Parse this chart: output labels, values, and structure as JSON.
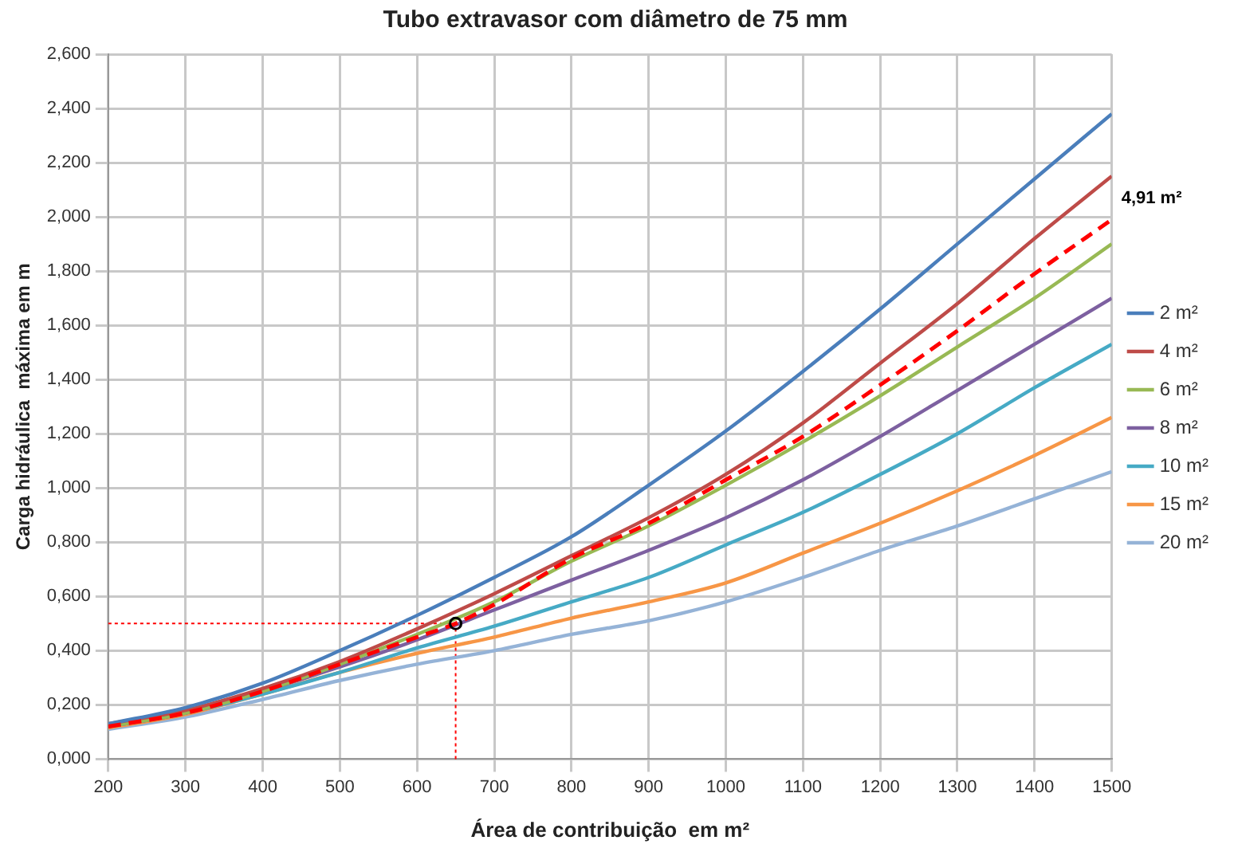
{
  "chart_data": {
    "type": "line",
    "title": "Tubo extravasor com diâmetro de 75 mm",
    "xlabel": "Área de contribuição  em m²",
    "ylabel": "Carga hidráulica  máxima em m",
    "x": [
      200,
      300,
      400,
      500,
      600,
      700,
      800,
      900,
      1000,
      1100,
      1200,
      1300,
      1400,
      1500
    ],
    "xlim": [
      200,
      1500
    ],
    "xticks": [
      200,
      300,
      400,
      500,
      600,
      700,
      800,
      900,
      1000,
      1100,
      1200,
      1300,
      1400,
      1500
    ],
    "ylim": [
      0,
      2.6
    ],
    "yticks": [
      {
        "value": 0,
        "label": "0,000"
      },
      {
        "value": 0.2,
        "label": "0,200"
      },
      {
        "value": 0.4,
        "label": "0,400"
      },
      {
        "value": 0.6,
        "label": "0,600"
      },
      {
        "value": 0.8,
        "label": "0,800"
      },
      {
        "value": 1,
        "label": "1,000"
      },
      {
        "value": 1.2,
        "label": "1,200"
      },
      {
        "value": 1.4,
        "label": "1,400"
      },
      {
        "value": 1.6,
        "label": "1,600"
      },
      {
        "value": 1.8,
        "label": "1,800"
      },
      {
        "value": 2,
        "label": "2,000"
      },
      {
        "value": 2.2,
        "label": "2,200"
      },
      {
        "value": 2.4,
        "label": "2,400"
      },
      {
        "value": 2.6,
        "label": "2,600"
      }
    ],
    "grid": true,
    "legend": "right",
    "marker": "none",
    "line_style": "solid",
    "series": [
      {
        "name": "2 m²",
        "color": "#4a7ebb",
        "values": [
          0.13,
          0.19,
          0.28,
          0.4,
          0.53,
          0.67,
          0.82,
          1.01,
          1.21,
          1.43,
          1.66,
          1.9,
          2.14,
          2.38
        ]
      },
      {
        "name": "4 m²",
        "color": "#be4b48",
        "values": [
          0.13,
          0.18,
          0.26,
          0.36,
          0.48,
          0.61,
          0.75,
          0.89,
          1.05,
          1.24,
          1.46,
          1.68,
          1.92,
          2.15
        ]
      },
      {
        "name": "6 m²",
        "color": "#98b954",
        "values": [
          0.12,
          0.17,
          0.25,
          0.35,
          0.46,
          0.58,
          0.73,
          0.86,
          1.01,
          1.17,
          1.34,
          1.52,
          1.7,
          1.9
        ]
      },
      {
        "name": "8 m²",
        "color": "#7d60a0",
        "values": [
          0.12,
          0.17,
          0.25,
          0.34,
          0.44,
          0.55,
          0.66,
          0.77,
          0.89,
          1.03,
          1.19,
          1.36,
          1.53,
          1.7
        ]
      },
      {
        "name": "10 m²",
        "color": "#46aac5",
        "values": [
          0.12,
          0.17,
          0.24,
          0.32,
          0.41,
          0.49,
          0.58,
          0.67,
          0.79,
          0.91,
          1.05,
          1.2,
          1.37,
          1.53
        ]
      },
      {
        "name": "15 m²",
        "color": "#f79646",
        "values": [
          0.115,
          0.165,
          0.24,
          0.32,
          0.39,
          0.45,
          0.52,
          0.58,
          0.65,
          0.76,
          0.87,
          0.99,
          1.12,
          1.26
        ]
      },
      {
        "name": "20 m²",
        "color": "#95b3d7",
        "values": [
          0.11,
          0.155,
          0.22,
          0.29,
          0.35,
          0.4,
          0.46,
          0.51,
          0.58,
          0.67,
          0.77,
          0.86,
          0.96,
          1.06
        ]
      },
      {
        "color": "#ff0000",
        "line_style": "dashed",
        "x": [
          200,
          300,
          400,
          500,
          600,
          650,
          700,
          800,
          900,
          1000,
          1100,
          1200,
          1300,
          1400,
          1500
        ],
        "values": [
          0.12,
          0.17,
          0.25,
          0.35,
          0.45,
          0.5,
          0.57,
          0.74,
          0.87,
          1.03,
          1.19,
          1.38,
          1.58,
          1.79,
          1.99
        ]
      },
      {
        "type": "scatter",
        "marker": "circle",
        "color": "#000000",
        "x": [
          650
        ],
        "values": [
          0.5
        ]
      }
    ],
    "ref_lines": [
      {
        "axis": "x",
        "value": 650,
        "color": "#ff0000",
        "line_style": "dotted"
      },
      {
        "axis": "y",
        "value": 0.5,
        "color": "#ff0000",
        "line_style": "dotted"
      }
    ],
    "annotations": [
      {
        "text": "4,91 m²",
        "x": 1500,
        "y": 1.99
      }
    ]
  }
}
